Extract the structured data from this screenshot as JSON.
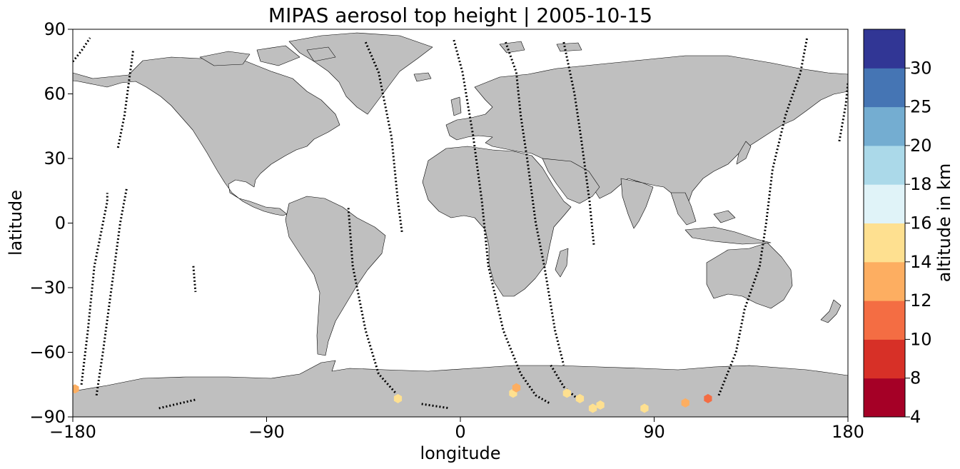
{
  "title": "MIPAS aerosol top height | 2005-10-15",
  "x_axis": {
    "label": "longitude",
    "range": [
      -180,
      180
    ],
    "ticks": [
      -180,
      -90,
      0,
      90,
      180
    ],
    "tick_labels": [
      "−180",
      "−90",
      "0",
      "90",
      "180"
    ]
  },
  "y_axis": {
    "label": "latitude",
    "range": [
      -90,
      90
    ],
    "ticks": [
      90,
      60,
      30,
      0,
      -30,
      -60,
      -90
    ],
    "tick_labels": [
      "90",
      "60",
      "30",
      "0",
      "−30",
      "−60",
      "−90"
    ]
  },
  "colorbar": {
    "label": "altitude in km",
    "bounds": [
      4,
      8,
      10,
      12,
      14,
      16,
      18,
      20,
      25,
      30
    ],
    "tick_labels": [
      "4",
      "8",
      "10",
      "12",
      "14",
      "16",
      "18",
      "20",
      "25",
      "30"
    ],
    "colors": [
      "#a50026",
      "#d73027",
      "#f46d43",
      "#fdae61",
      "#fee090",
      "#e0f3f8",
      "#abd9e9",
      "#74add1",
      "#4575b4",
      "#313695"
    ]
  },
  "colors": {
    "land": "#bfbfbf",
    "coast": "#000000",
    "track": "#000000"
  },
  "chart_data": {
    "type": "scatter",
    "title": "MIPAS aerosol top height | 2005-10-15",
    "xlabel": "longitude",
    "ylabel": "latitude",
    "xlim": [
      -180,
      180
    ],
    "ylim": [
      -90,
      90
    ],
    "aerosol_points": [
      {
        "lon": -179,
        "lat": -77,
        "alt": 13
      },
      {
        "lon": -29,
        "lat": -81.5,
        "alt": 15
      },
      {
        "lon": 24.5,
        "lat": -79,
        "alt": 15
      },
      {
        "lon": 26,
        "lat": -76.5,
        "alt": 13
      },
      {
        "lon": 49.5,
        "lat": -79,
        "alt": 15
      },
      {
        "lon": 55.5,
        "lat": -81.5,
        "alt": 15
      },
      {
        "lon": 61.5,
        "lat": -86,
        "alt": 15
      },
      {
        "lon": 65,
        "lat": -84.5,
        "alt": 15
      },
      {
        "lon": 85.5,
        "lat": -86,
        "alt": 15
      },
      {
        "lon": 104.5,
        "lat": -83.5,
        "alt": 13
      },
      {
        "lon": 115,
        "lat": -81.5,
        "alt": 11
      }
    ],
    "tracks": [
      [
        [
          -180,
          75
        ],
        [
          -176,
          80
        ],
        [
          -172,
          86
        ]
      ],
      [
        [
          -169,
          -80
        ],
        [
          -166,
          -60
        ],
        [
          -162,
          -30
        ],
        [
          -158,
          0
        ],
        [
          -155,
          16
        ]
      ],
      [
        [
          -176,
          -75
        ],
        [
          -173,
          -50
        ],
        [
          -170,
          -20
        ],
        [
          -164,
          10
        ],
        [
          -164,
          14
        ]
      ],
      [
        [
          -159,
          35
        ],
        [
          -156,
          50
        ],
        [
          -154,
          65
        ],
        [
          -152,
          80
        ]
      ],
      [
        [
          -124,
          -20
        ],
        [
          -123,
          -32
        ]
      ],
      [
        [
          -52,
          7
        ],
        [
          -50,
          -20
        ],
        [
          -44,
          -50
        ],
        [
          -38,
          -70
        ],
        [
          -30,
          -79
        ]
      ],
      [
        [
          -44,
          84
        ],
        [
          -38,
          70
        ],
        [
          -32,
          40
        ],
        [
          -29,
          10
        ],
        [
          -27,
          -5
        ]
      ],
      [
        [
          -3,
          85
        ],
        [
          1,
          70
        ],
        [
          6,
          40
        ],
        [
          10,
          10
        ],
        [
          13,
          -20
        ],
        [
          20,
          -50
        ],
        [
          28,
          -70
        ],
        [
          35,
          -80
        ],
        [
          42,
          -84
        ]
      ],
      [
        [
          21,
          84
        ],
        [
          26,
          70
        ],
        [
          28,
          50
        ],
        [
          31,
          30
        ],
        [
          35,
          0
        ],
        [
          39,
          -20
        ],
        [
          44,
          -50
        ],
        [
          48,
          -66
        ]
      ],
      [
        [
          48,
          84
        ],
        [
          53,
          60
        ],
        [
          56,
          40
        ],
        [
          60,
          10
        ],
        [
          62,
          -10
        ]
      ],
      [
        [
          42,
          -66
        ],
        [
          48,
          -76
        ],
        [
          56,
          -83
        ]
      ],
      [
        [
          120,
          -80
        ],
        [
          128,
          -60
        ],
        [
          132,
          -40
        ],
        [
          139,
          -20
        ],
        [
          142,
          0
        ],
        [
          145,
          25
        ],
        [
          151,
          50
        ],
        [
          158,
          70
        ],
        [
          161,
          86
        ]
      ],
      [
        [
          176,
          38
        ],
        [
          179,
          55
        ],
        [
          180,
          65
        ]
      ],
      [
        [
          -140,
          -86
        ],
        [
          -123,
          -82
        ]
      ],
      [
        [
          -18,
          -84
        ],
        [
          -5,
          -86
        ]
      ]
    ]
  }
}
